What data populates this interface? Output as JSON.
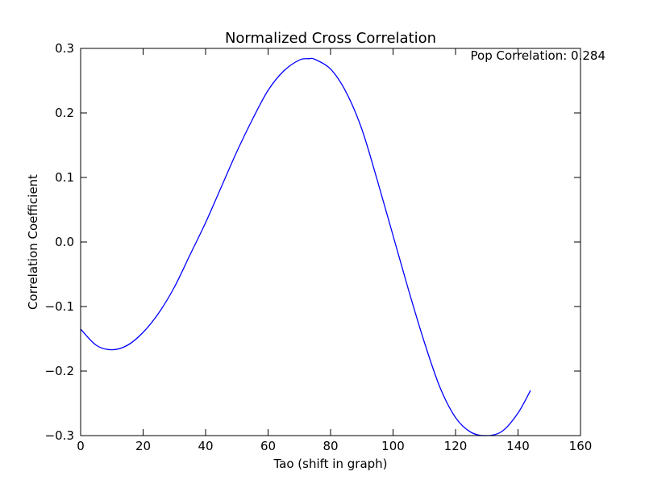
{
  "chart_data": {
    "type": "line",
    "title": "Normalized Cross Correlation",
    "xlabel": "Tao (shift in graph)",
    "ylabel": "Correlation Coefficient",
    "xlim": [
      0,
      160
    ],
    "ylim": [
      -0.3,
      0.3
    ],
    "xticks": [
      0,
      20,
      40,
      60,
      80,
      100,
      120,
      140,
      160
    ],
    "yticks": [
      -0.3,
      -0.2,
      -0.1,
      0.0,
      0.1,
      0.2,
      0.3
    ],
    "xtick_labels": [
      "0",
      "20",
      "40",
      "60",
      "80",
      "100",
      "120",
      "140",
      "160"
    ],
    "ytick_labels": [
      "−0.3",
      "−0.2",
      "−0.1",
      "0.0",
      "0.1",
      "0.2",
      "0.3"
    ],
    "grid": false,
    "annotation": "Pop Correlation: 0.284",
    "series": [
      {
        "color": "#0000ff",
        "x": [
          0,
          5,
          10,
          15,
          20,
          25,
          30,
          35,
          40,
          45,
          50,
          55,
          60,
          65,
          70,
          73,
          75,
          80,
          85,
          90,
          95,
          100,
          105,
          110,
          115,
          120,
          125,
          130,
          135,
          140,
          144
        ],
        "y": [
          -0.135,
          -0.16,
          -0.167,
          -0.16,
          -0.14,
          -0.11,
          -0.07,
          -0.02,
          0.03,
          0.085,
          0.14,
          0.19,
          0.235,
          0.265,
          0.282,
          0.284,
          0.283,
          0.268,
          0.232,
          0.175,
          0.095,
          0.01,
          -0.075,
          -0.155,
          -0.225,
          -0.272,
          -0.295,
          -0.3,
          -0.293,
          -0.265,
          -0.23
        ]
      }
    ]
  }
}
